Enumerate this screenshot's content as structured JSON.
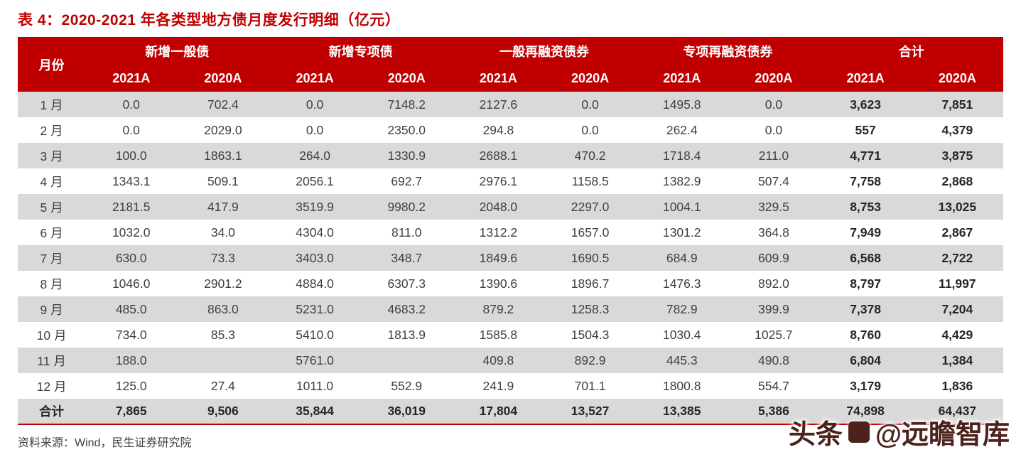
{
  "title": "表 4：2020-2021 年各类型地方债月度发行明细（亿元）",
  "source": "资料来源：Wind，民生证券研究院",
  "watermark": {
    "brand": "头条",
    "handle": "@远瞻智库"
  },
  "colors": {
    "header_red": "#C00000",
    "stripe_gray": "#D9D9D9",
    "body_text": "#404040"
  },
  "table": {
    "month_header": "月份",
    "groups": [
      "新增一般债",
      "新增专项债",
      "一般再融资债券",
      "专项再融资债券",
      "合计"
    ],
    "subheaders": [
      "2021A",
      "2020A"
    ],
    "rows": [
      {
        "month": "1 月",
        "values": [
          "0.0",
          "702.4",
          "0.0",
          "7148.2",
          "2127.6",
          "0.0",
          "1495.8",
          "0.0",
          "3,623",
          "7,851"
        ]
      },
      {
        "month": "2 月",
        "values": [
          "0.0",
          "2029.0",
          "0.0",
          "2350.0",
          "294.8",
          "0.0",
          "262.4",
          "0.0",
          "557",
          "4,379"
        ]
      },
      {
        "month": "3 月",
        "values": [
          "100.0",
          "1863.1",
          "264.0",
          "1330.9",
          "2688.1",
          "470.2",
          "1718.4",
          "211.0",
          "4,771",
          "3,875"
        ]
      },
      {
        "month": "4 月",
        "values": [
          "1343.1",
          "509.1",
          "2056.1",
          "692.7",
          "2976.1",
          "1158.5",
          "1382.9",
          "507.4",
          "7,758",
          "2,868"
        ]
      },
      {
        "month": "5 月",
        "values": [
          "2181.5",
          "417.9",
          "3519.9",
          "9980.2",
          "2048.0",
          "2297.0",
          "1004.1",
          "329.5",
          "8,753",
          "13,025"
        ]
      },
      {
        "month": "6 月",
        "values": [
          "1032.0",
          "34.0",
          "4304.0",
          "811.0",
          "1312.2",
          "1657.0",
          "1301.2",
          "364.8",
          "7,949",
          "2,867"
        ]
      },
      {
        "month": "7 月",
        "values": [
          "630.0",
          "73.3",
          "3403.0",
          "348.7",
          "1849.6",
          "1690.5",
          "684.9",
          "609.9",
          "6,568",
          "2,722"
        ]
      },
      {
        "month": "8 月",
        "values": [
          "1046.0",
          "2901.2",
          "4884.0",
          "6307.3",
          "1390.6",
          "1896.7",
          "1476.3",
          "892.0",
          "8,797",
          "11,997"
        ]
      },
      {
        "month": "9 月",
        "values": [
          "485.0",
          "863.0",
          "5231.0",
          "4683.2",
          "879.2",
          "1258.3",
          "782.9",
          "399.9",
          "7,378",
          "7,204"
        ]
      },
      {
        "month": "10 月",
        "values": [
          "734.0",
          "85.3",
          "5410.0",
          "1813.9",
          "1585.8",
          "1504.3",
          "1030.4",
          "1025.7",
          "8,760",
          "4,429"
        ]
      },
      {
        "month": "11 月",
        "values": [
          "188.0",
          "",
          "5761.0",
          "",
          "409.8",
          "892.9",
          "445.3",
          "490.8",
          "6,804",
          "1,384"
        ]
      },
      {
        "month": "12 月",
        "values": [
          "125.0",
          "27.4",
          "1011.0",
          "552.9",
          "241.9",
          "701.1",
          "1800.8",
          "554.7",
          "3,179",
          "1,836"
        ]
      }
    ],
    "total_row": {
      "month": "合计",
      "values": [
        "7,865",
        "9,506",
        "35,844",
        "36,019",
        "17,804",
        "13,527",
        "13,385",
        "5,386",
        "74,898",
        "64,437"
      ]
    }
  }
}
